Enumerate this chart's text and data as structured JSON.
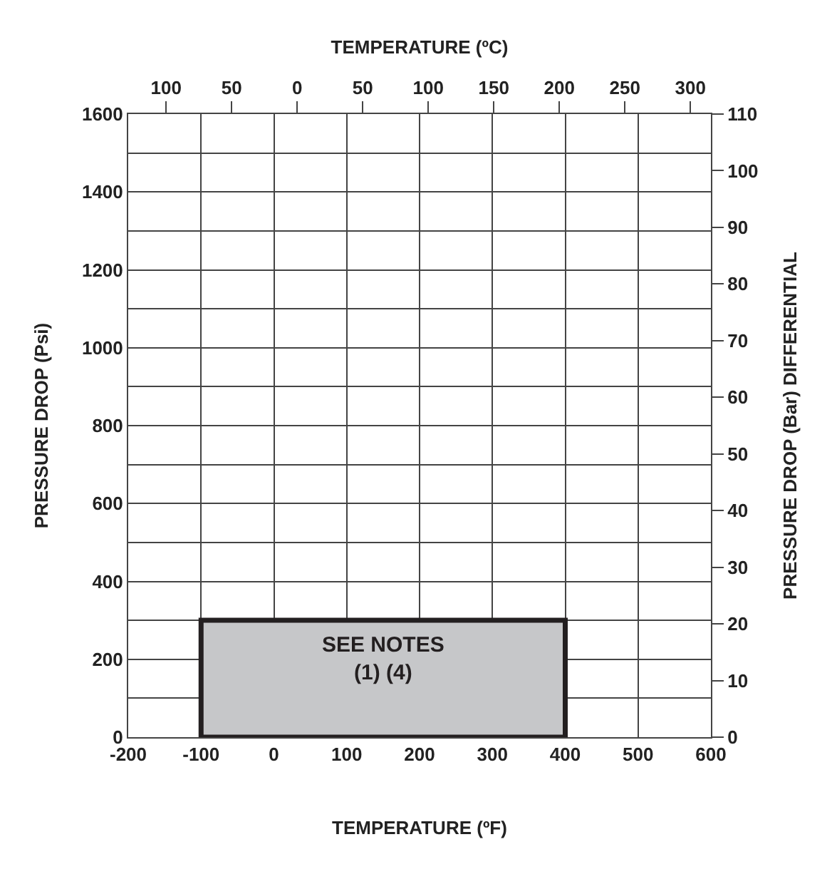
{
  "chart_data": {
    "type": "histogram",
    "xlabel": "TEMPERATURE (ºF)",
    "x2label": "TEMPERATURE (ºC)",
    "ylabel": "PRESSURE DROP (Psi)",
    "y2label": "PRESSURE DROP (Bar) DIFFERENTIAL",
    "bins": [
      -100,
      400
    ],
    "values": [
      300
    ],
    "color": "#c6c7c9",
    "xlim": [
      -200,
      600
    ],
    "xticks": [
      -200,
      -100,
      0,
      100,
      200,
      300,
      400,
      500,
      600
    ],
    "x2lim": [
      -128.9,
      315.6
    ],
    "x2ticks": [
      {
        "value": -100,
        "label": "100"
      },
      {
        "value": -50,
        "label": "50"
      },
      0,
      50,
      100,
      150,
      200,
      250,
      300
    ],
    "ylim": [
      0,
      1600
    ],
    "yticks": [
      0,
      {
        "value": 100,
        "label": null
      },
      200,
      {
        "value": 300,
        "label": null
      },
      400,
      {
        "value": 500,
        "label": null
      },
      600,
      {
        "value": 700,
        "label": null
      },
      800,
      {
        "value": 900,
        "label": null
      },
      1000,
      {
        "value": 1100,
        "label": null
      },
      1200,
      {
        "value": 1300,
        "label": null
      },
      1400,
      {
        "value": 1500,
        "label": null
      },
      1600
    ],
    "y2lim": [
      0,
      110
    ],
    "y2ticks": [
      0,
      10,
      20,
      30,
      40,
      50,
      60,
      70,
      80,
      90,
      100,
      110
    ],
    "grid": true,
    "annotations": [
      "SEE NOTES\n(1) (4)"
    ]
  }
}
